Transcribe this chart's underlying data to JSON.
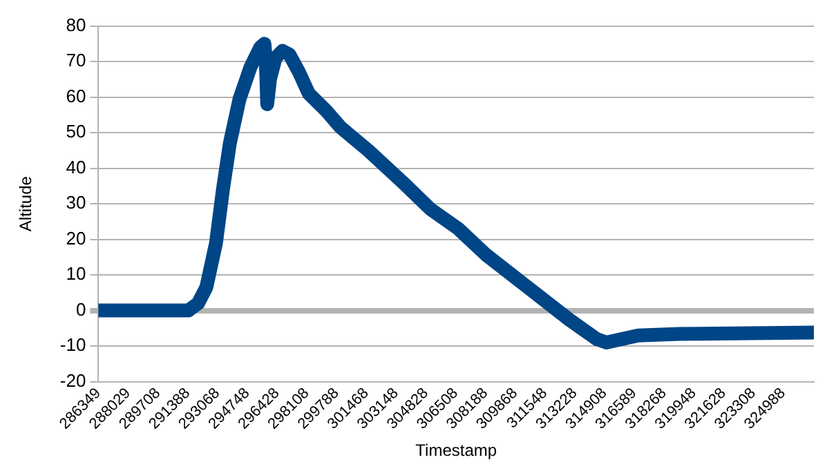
{
  "chart_data": {
    "type": "line",
    "xlabel": "Timestamp",
    "ylabel": "Altitude",
    "x": [
      286349,
      291426,
      291972,
      292441,
      292988,
      293378,
      293769,
      294315,
      294940,
      295487,
      295721,
      295799,
      295877,
      296033,
      296346,
      296736,
      297127,
      297673,
      298220,
      299236,
      300017,
      301579,
      303531,
      305093,
      306655,
      308217,
      310560,
      312903,
      314465,
      315012,
      316808,
      319151,
      326727
    ],
    "series": [
      {
        "color": "#004586",
        "values": [
          0,
          0,
          2,
          6.5,
          19,
          34,
          47,
          59.5,
          68.5,
          74,
          75,
          70,
          58,
          65,
          71,
          73,
          72,
          67,
          61,
          56,
          51.5,
          45,
          36,
          28.5,
          23,
          15.7,
          6.6,
          -2.5,
          -8,
          -9,
          -7,
          -6.6,
          -6.2
        ]
      }
    ],
    "xlim": [
      286349,
      326727
    ],
    "xticks": [
      286349,
      288029,
      289708,
      291388,
      293068,
      294748,
      296428,
      298108,
      299788,
      301468,
      303148,
      304828,
      306508,
      308188,
      309868,
      311548,
      313228,
      314908,
      316589,
      318268,
      319948,
      321628,
      323308,
      324988
    ],
    "ylim": [
      -20,
      80
    ],
    "yticks": [
      -20,
      -10,
      0,
      10,
      20,
      30,
      40,
      50,
      60,
      70,
      80
    ],
    "grid": "y",
    "marker": "none",
    "line_style": "solid",
    "legend": false
  }
}
